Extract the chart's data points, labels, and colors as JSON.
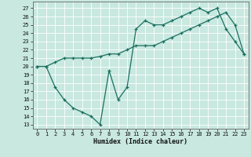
{
  "xlabel": "Humidex (Indice chaleur)",
  "background_color": "#c8e8e0",
  "grid_color": "#ffffff",
  "line_color": "#1a7060",
  "xlim": [
    -0.5,
    23.5
  ],
  "ylim": [
    12.5,
    27.8
  ],
  "yticks": [
    13,
    14,
    15,
    16,
    17,
    18,
    19,
    20,
    21,
    22,
    23,
    24,
    25,
    26,
    27
  ],
  "xticks": [
    0,
    1,
    2,
    3,
    4,
    5,
    6,
    7,
    8,
    9,
    10,
    11,
    12,
    13,
    14,
    15,
    16,
    17,
    18,
    19,
    20,
    21,
    22,
    23
  ],
  "line1_x": [
    0,
    1,
    2,
    3,
    4,
    5,
    6,
    7,
    8,
    9,
    10,
    11,
    12,
    13,
    14,
    15,
    16,
    17,
    18,
    19,
    20,
    21,
    22,
    23
  ],
  "line1_y": [
    20,
    20,
    20.5,
    21,
    21,
    21,
    21,
    21.2,
    21.5,
    21.5,
    22,
    22.5,
    22.5,
    22.5,
    23,
    23.5,
    24,
    24.5,
    25,
    25.5,
    26,
    26.5,
    25,
    21.5
  ],
  "line2_x": [
    0,
    1,
    2,
    3,
    4,
    5,
    6,
    7,
    8,
    9,
    10,
    11,
    12,
    13,
    14,
    15,
    16,
    17,
    18,
    19,
    20,
    21,
    22,
    23
  ],
  "line2_y": [
    20,
    20,
    17.5,
    16,
    15,
    14.5,
    14,
    13,
    19.5,
    16,
    17.5,
    24.5,
    25.5,
    25,
    25,
    25.5,
    26,
    26.5,
    27,
    26.5,
    27,
    24.5,
    23,
    21.5
  ]
}
